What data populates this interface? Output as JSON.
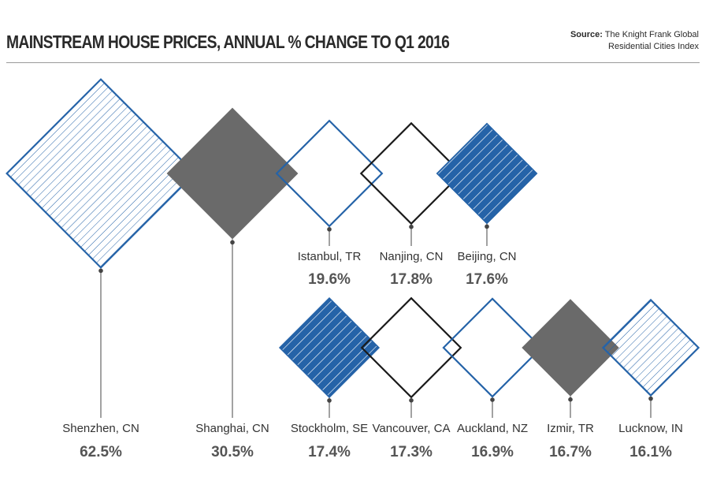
{
  "header": {
    "title": "MAINSTREAM HOUSE PRICES, ANNUAL % CHANGE TO Q1 2016",
    "source_label": "Source:",
    "source_line1": "The Knight Frank Global",
    "source_line2": "Residential Cities Index"
  },
  "colors": {
    "blue": "#2563a8",
    "grey": "#6a6a6a",
    "black": "#1a1a1a",
    "rule": "#9a9a9a"
  },
  "chart_data": {
    "type": "bar",
    "title": "MAINSTREAM HOUSE PRICES, ANNUAL % CHANGE TO Q1 2016",
    "encoding": "diamond size proportional to value",
    "categories": [
      "Shenzhen, CN",
      "Shanghai, CN",
      "Istanbul, TR",
      "Nanjing, CN",
      "Beijing, CN",
      "Stockholm, SE",
      "Vancouver, CA",
      "Auckland, NZ",
      "Izmir, TR",
      "Lucknow, IN"
    ],
    "values": [
      62.5,
      30.5,
      19.6,
      17.8,
      17.6,
      17.4,
      17.3,
      16.9,
      16.7,
      16.1
    ],
    "value_labels": [
      "62.5%",
      "30.5%",
      "19.6%",
      "17.8%",
      "17.6%",
      "17.4%",
      "17.3%",
      "16.9%",
      "16.7%",
      "16.1%"
    ],
    "styles": [
      "blue-hatched",
      "grey-solid",
      "blue-outline",
      "black-outline",
      "blue-solid-striped",
      "blue-solid-striped",
      "black-outline",
      "blue-outline",
      "grey-solid",
      "blue-hatched"
    ]
  }
}
